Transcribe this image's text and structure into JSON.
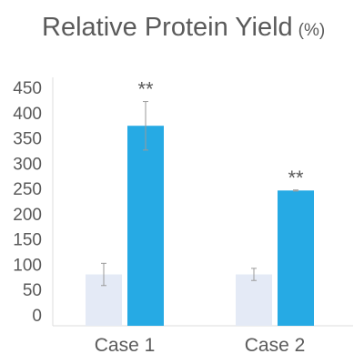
{
  "chart_data": {
    "type": "bar",
    "title": "Relative Protein Yield",
    "title_unit": "(%)",
    "xlabel": "",
    "ylabel": "",
    "categories": [
      "Case 1",
      "Case 2"
    ],
    "ylim": [
      0,
      450
    ],
    "yticks": [
      0,
      50,
      100,
      150,
      200,
      250,
      300,
      350,
      400,
      450
    ],
    "yticklabels": [
      "0",
      "50",
      "100",
      "150",
      "200",
      "250",
      "300",
      "350",
      "400",
      "450"
    ],
    "grid": false,
    "series": [
      {
        "values": [
          80,
          80
        ],
        "error": [
          22,
          12
        ],
        "color": "#e4eaf6"
      },
      {
        "values": [
          374,
          246
        ],
        "error": [
          48,
          1
        ],
        "color": "#26aae4"
      }
    ],
    "annotations": [
      "**",
      "**"
    ]
  }
}
